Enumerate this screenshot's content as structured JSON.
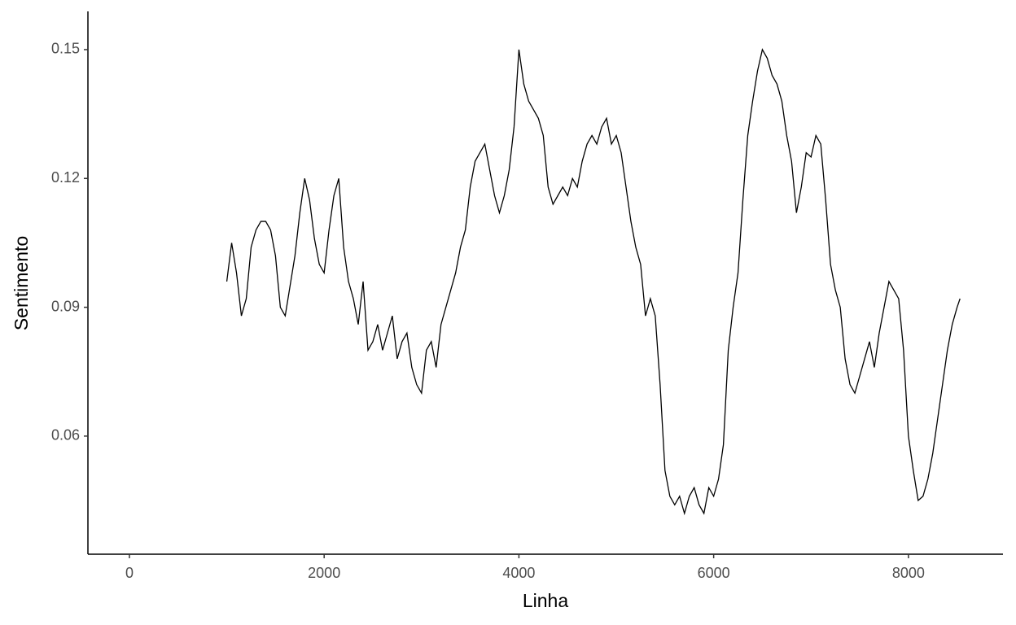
{
  "chart_data": {
    "type": "line",
    "x_label": "Linha",
    "y_label": "Sentimento",
    "xlim": [
      -426,
      8971
    ],
    "ylim": [
      0.0325,
      0.1589
    ],
    "xticks": [
      0,
      2000,
      4000,
      6000,
      8000
    ],
    "yticks": [
      {
        "value": 0.06,
        "label": "0.06"
      },
      {
        "value": 0.09,
        "label": "0.09"
      },
      {
        "value": 0.12,
        "label": "0.12"
      },
      {
        "value": 0.15,
        "label": "0.15"
      }
    ],
    "grid": false,
    "series": [
      {
        "name": "Sentimento",
        "color": "#000000",
        "x": [
          1000,
          1050,
          1100,
          1150,
          1200,
          1250,
          1300,
          1350,
          1400,
          1450,
          1500,
          1550,
          1600,
          1650,
          1700,
          1750,
          1800,
          1850,
          1900,
          1950,
          2000,
          2050,
          2100,
          2150,
          2200,
          2250,
          2300,
          2350,
          2400,
          2450,
          2500,
          2550,
          2600,
          2650,
          2700,
          2750,
          2800,
          2850,
          2900,
          2950,
          3000,
          3050,
          3100,
          3150,
          3200,
          3250,
          3300,
          3350,
          3400,
          3450,
          3500,
          3550,
          3600,
          3650,
          3700,
          3750,
          3800,
          3850,
          3900,
          3950,
          4000,
          4050,
          4100,
          4150,
          4200,
          4250,
          4300,
          4350,
          4400,
          4450,
          4500,
          4550,
          4600,
          4650,
          4700,
          4750,
          4800,
          4850,
          4900,
          4950,
          5000,
          5050,
          5100,
          5150,
          5200,
          5250,
          5300,
          5350,
          5400,
          5450,
          5500,
          5550,
          5600,
          5650,
          5700,
          5750,
          5800,
          5850,
          5900,
          5950,
          6000,
          6050,
          6100,
          6150,
          6200,
          6250,
          6300,
          6350,
          6400,
          6450,
          6500,
          6550,
          6600,
          6650,
          6700,
          6750,
          6800,
          6850,
          6900,
          6950,
          7000,
          7050,
          7100,
          7150,
          7200,
          7250,
          7300,
          7350,
          7400,
          7450,
          7500,
          7550,
          7600,
          7650,
          7700,
          7750,
          7800,
          7850,
          7900,
          7950,
          8000,
          8050,
          8100,
          8150,
          8200,
          8250,
          8300,
          8350,
          8400,
          8450,
          8500,
          8530
        ],
        "values": [
          0.096,
          0.105,
          0.098,
          0.088,
          0.092,
          0.104,
          0.108,
          0.11,
          0.11,
          0.108,
          0.102,
          0.09,
          0.088,
          0.095,
          0.102,
          0.112,
          0.12,
          0.115,
          0.106,
          0.1,
          0.098,
          0.108,
          0.116,
          0.12,
          0.104,
          0.096,
          0.092,
          0.086,
          0.096,
          0.08,
          0.082,
          0.086,
          0.08,
          0.084,
          0.088,
          0.078,
          0.082,
          0.084,
          0.076,
          0.072,
          0.07,
          0.08,
          0.082,
          0.076,
          0.086,
          0.09,
          0.094,
          0.098,
          0.104,
          0.108,
          0.118,
          0.124,
          0.126,
          0.128,
          0.122,
          0.116,
          0.112,
          0.116,
          0.122,
          0.132,
          0.15,
          0.142,
          0.138,
          0.136,
          0.134,
          0.13,
          0.118,
          0.114,
          0.116,
          0.118,
          0.116,
          0.12,
          0.118,
          0.124,
          0.128,
          0.13,
          0.128,
          0.132,
          0.134,
          0.128,
          0.13,
          0.126,
          0.118,
          0.11,
          0.104,
          0.1,
          0.088,
          0.092,
          0.088,
          0.072,
          0.052,
          0.046,
          0.044,
          0.046,
          0.042,
          0.046,
          0.048,
          0.044,
          0.042,
          0.048,
          0.046,
          0.05,
          0.058,
          0.08,
          0.09,
          0.098,
          0.115,
          0.13,
          0.138,
          0.145,
          0.15,
          0.148,
          0.144,
          0.142,
          0.138,
          0.13,
          0.124,
          0.112,
          0.118,
          0.126,
          0.125,
          0.13,
          0.128,
          0.115,
          0.1,
          0.094,
          0.09,
          0.078,
          0.072,
          0.07,
          0.074,
          0.078,
          0.082,
          0.076,
          0.084,
          0.09,
          0.096,
          0.094,
          0.092,
          0.08,
          0.06,
          0.052,
          0.045,
          0.046,
          0.05,
          0.056,
          0.064,
          0.072,
          0.08,
          0.086,
          0.09,
          0.092
        ]
      }
    ]
  }
}
